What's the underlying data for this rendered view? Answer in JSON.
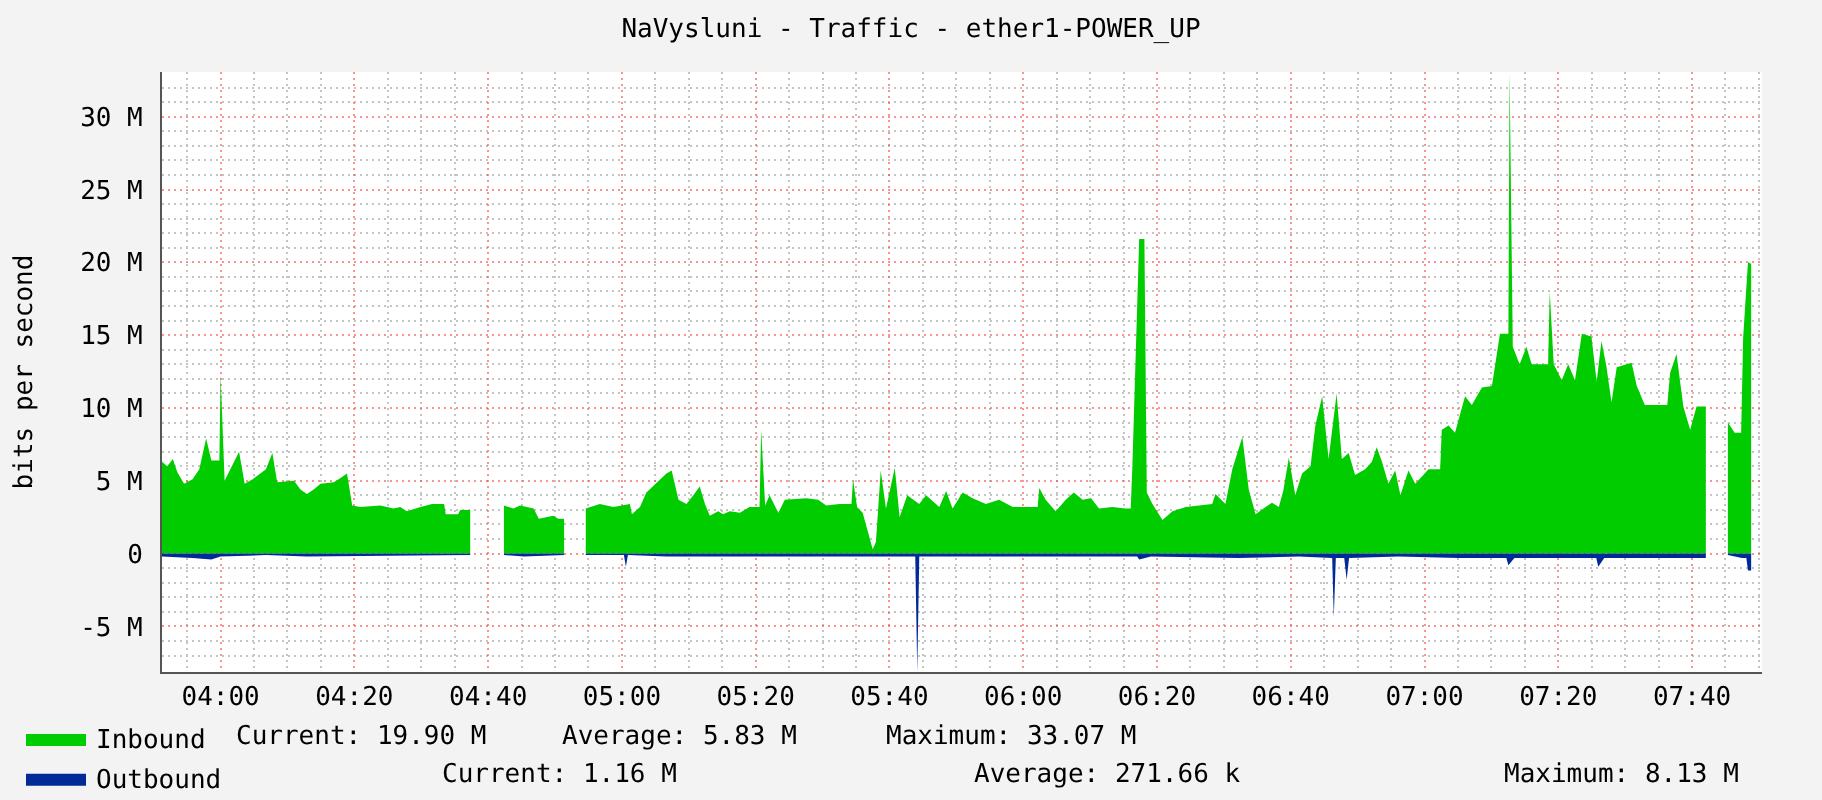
{
  "chart_data": {
    "type": "area",
    "title": "NaVysluni - Traffic - ether1-POWER_UP",
    "ylabel": "bits per second",
    "xlim": [
      3.854,
      7.841
    ],
    "ylim": [
      -8.13,
      33.07
    ],
    "xticks": [
      {
        "value": 3.9167,
        "label": null
      },
      {
        "value": 4,
        "label": "04:00"
      },
      {
        "value": 4.0833,
        "label": null
      },
      {
        "value": 4.1667,
        "label": null
      },
      {
        "value": 4.25,
        "label": null
      },
      {
        "value": 4.3333,
        "label": "04:20"
      },
      {
        "value": 4.4167,
        "label": null
      },
      {
        "value": 4.5,
        "label": null
      },
      {
        "value": 4.5833,
        "label": null
      },
      {
        "value": 4.6667,
        "label": "04:40"
      },
      {
        "value": 4.75,
        "label": null
      },
      {
        "value": 4.8333,
        "label": null
      },
      {
        "value": 4.9167,
        "label": null
      },
      {
        "value": 5,
        "label": "05:00"
      },
      {
        "value": 5.0833,
        "label": null
      },
      {
        "value": 5.1667,
        "label": null
      },
      {
        "value": 5.25,
        "label": null
      },
      {
        "value": 5.3333,
        "label": "05:20"
      },
      {
        "value": 5.4167,
        "label": null
      },
      {
        "value": 5.5,
        "label": null
      },
      {
        "value": 5.5833,
        "label": null
      },
      {
        "value": 5.6667,
        "label": "05:40"
      },
      {
        "value": 5.75,
        "label": null
      },
      {
        "value": 5.8333,
        "label": null
      },
      {
        "value": 5.9167,
        "label": null
      },
      {
        "value": 6,
        "label": "06:00"
      },
      {
        "value": 6.0833,
        "label": null
      },
      {
        "value": 6.1667,
        "label": null
      },
      {
        "value": 6.25,
        "label": null
      },
      {
        "value": 6.3333,
        "label": "06:20"
      },
      {
        "value": 6.4167,
        "label": null
      },
      {
        "value": 6.5,
        "label": null
      },
      {
        "value": 6.5833,
        "label": null
      },
      {
        "value": 6.6667,
        "label": "06:40"
      },
      {
        "value": 6.75,
        "label": null
      },
      {
        "value": 6.8333,
        "label": null
      },
      {
        "value": 6.9167,
        "label": null
      },
      {
        "value": 7,
        "label": "07:00"
      },
      {
        "value": 7.0833,
        "label": null
      },
      {
        "value": 7.1667,
        "label": null
      },
      {
        "value": 7.25,
        "label": null
      },
      {
        "value": 7.3333,
        "label": "07:20"
      },
      {
        "value": 7.4167,
        "label": null
      },
      {
        "value": 7.5,
        "label": null
      },
      {
        "value": 7.5833,
        "label": null
      },
      {
        "value": 7.6667,
        "label": "07:40"
      },
      {
        "value": 7.75,
        "label": null
      },
      {
        "value": 7.8333,
        "label": null
      }
    ],
    "yticks": [
      {
        "value": -7,
        "label": null
      },
      {
        "value": -6,
        "label": null
      },
      {
        "value": -5,
        "label": "-5 M"
      },
      {
        "value": -4,
        "label": null
      },
      {
        "value": -3,
        "label": null
      },
      {
        "value": -2,
        "label": null
      },
      {
        "value": -1,
        "label": null
      },
      0,
      {
        "value": 1,
        "label": null
      },
      {
        "value": 2,
        "label": null
      },
      {
        "value": 3,
        "label": null
      },
      {
        "value": 4,
        "label": null
      },
      {
        "value": 5,
        "label": "5 M"
      },
      {
        "value": 6,
        "label": null
      },
      {
        "value": 7,
        "label": null
      },
      {
        "value": 8,
        "label": null
      },
      {
        "value": 9,
        "label": null
      },
      {
        "value": 10,
        "label": "10 M"
      },
      {
        "value": 11,
        "label": null
      },
      {
        "value": 12,
        "label": null
      },
      {
        "value": 13,
        "label": null
      },
      {
        "value": 14,
        "label": null
      },
      {
        "value": 15,
        "label": "15 M"
      },
      {
        "value": 16,
        "label": null
      },
      {
        "value": 17,
        "label": null
      },
      {
        "value": 18,
        "label": null
      },
      {
        "value": 19,
        "label": null
      },
      {
        "value": 20,
        "label": "20 M"
      },
      {
        "value": 21,
        "label": null
      },
      {
        "value": 22,
        "label": null
      },
      {
        "value": 23,
        "label": null
      },
      {
        "value": 24,
        "label": null
      },
      {
        "value": 25,
        "label": "25 M"
      },
      {
        "value": 26,
        "label": null
      },
      {
        "value": 27,
        "label": null
      },
      {
        "value": 28,
        "label": null
      },
      {
        "value": 29,
        "label": null
      },
      {
        "value": 30,
        "label": "30 M"
      },
      {
        "value": 31,
        "label": null
      },
      {
        "value": 32,
        "label": null
      }
    ],
    "grid": true,
    "legend": "bottom left",
    "series": [
      {
        "name": "Inbound",
        "color": "#00cc00",
        "x": [
          3.854,
          3.867,
          3.881,
          3.892,
          3.909,
          3.93,
          3.947,
          3.964,
          3.977,
          3.997,
          4.0,
          4.01,
          4.046,
          4.06,
          4.08,
          4.113,
          4.129,
          4.141,
          4.183,
          4.199,
          4.215,
          4.232,
          4.249,
          4.282,
          4.299,
          4.315,
          4.328,
          4.348,
          4.398,
          4.431,
          4.448,
          4.464,
          4.498,
          4.527,
          4.557,
          4.561,
          4.592,
          4.597,
          4.622,
          4.66,
          4.706,
          4.73,
          4.746,
          4.78,
          4.793,
          4.829,
          4.841,
          4.856,
          4.88,
          4.91,
          4.945,
          4.979,
          5.02,
          5.025,
          5.045,
          5.061,
          5.111,
          5.124,
          5.141,
          5.161,
          5.178,
          5.194,
          5.207,
          5.219,
          5.24,
          5.252,
          5.269,
          5.294,
          5.318,
          5.343,
          5.347,
          5.357,
          5.368,
          5.39,
          5.406,
          5.459,
          5.489,
          5.509,
          5.542,
          5.572,
          5.576,
          5.586,
          5.6,
          5.625,
          5.633,
          5.645,
          5.658,
          5.68,
          5.692,
          5.711,
          5.741,
          5.758,
          5.791,
          5.808,
          5.824,
          5.849,
          5.874,
          5.907,
          5.94,
          5.974,
          6.036,
          6.04,
          6.056,
          6.081,
          6.106,
          6.126,
          6.148,
          6.169,
          6.189,
          6.222,
          6.255,
          6.268,
          6.272,
          6.289,
          6.302,
          6.308,
          6.322,
          6.347,
          6.372,
          6.405,
          6.438,
          6.471,
          6.479,
          6.504,
          6.521,
          6.546,
          6.562,
          6.579,
          6.604,
          6.62,
          6.637,
          6.648,
          6.662,
          6.678,
          6.695,
          6.716,
          6.728,
          6.745,
          6.761,
          6.781,
          6.794,
          6.811,
          6.827,
          6.852,
          6.869,
          6.881,
          6.894,
          6.91,
          6.927,
          6.94,
          6.96,
          6.977,
          7.01,
          7.039,
          7.043,
          7.06,
          7.076,
          7.101,
          7.118,
          7.143,
          7.168,
          7.188,
          7.209,
          7.212,
          7.22,
          7.237,
          7.254,
          7.267,
          7.308,
          7.312,
          7.322,
          7.342,
          7.358,
          7.375,
          7.392,
          7.416,
          7.429,
          7.441,
          7.453,
          7.466,
          7.479,
          7.516,
          7.529,
          7.549,
          7.605,
          7.612,
          7.628,
          7.645,
          7.662,
          7.678,
          7.701,
          7.73,
          7.756,
          7.773,
          7.789,
          7.794,
          7.806,
          7.814
        ],
        "values": [
          6.3,
          6.0,
          6.5,
          5.6,
          4.8,
          5.1,
          5.8,
          7.9,
          6.4,
          6.4,
          12.3,
          5.0,
          7.0,
          4.8,
          5.1,
          5.8,
          6.9,
          4.9,
          5.0,
          4.4,
          4.1,
          4.4,
          4.8,
          4.9,
          5.2,
          5.5,
          3.3,
          3.2,
          3.3,
          3.1,
          3.2,
          2.9,
          3.2,
          3.4,
          3.4,
          2.7,
          2.7,
          3.0,
          3.0,
          null,
          3.3,
          3.1,
          3.3,
          3.1,
          2.4,
          2.6,
          2.4,
          2.4,
          null,
          3.1,
          3.4,
          3.2,
          3.4,
          2.7,
          3.2,
          4.2,
          5.5,
          5.7,
          3.7,
          3.4,
          4.0,
          4.6,
          3.4,
          2.6,
          2.9,
          2.7,
          2.9,
          2.8,
          3.2,
          3.2,
          8.5,
          3.3,
          4.0,
          2.8,
          3.7,
          3.8,
          3.7,
          3.3,
          3.4,
          3.4,
          5.1,
          3.2,
          2.8,
          0.3,
          0.8,
          5.7,
          3.1,
          5.9,
          2.5,
          4.0,
          3.4,
          4.0,
          3.2,
          4.3,
          3.1,
          4.2,
          3.8,
          3.4,
          3.7,
          3.2,
          3.2,
          4.5,
          3.7,
          2.9,
          3.7,
          4.2,
          3.7,
          3.8,
          3.1,
          3.2,
          3.1,
          3.1,
          6.0,
          21.6,
          21.6,
          4.2,
          3.4,
          2.3,
          2.9,
          3.2,
          3.3,
          3.4,
          4.1,
          3.4,
          5.8,
          8.0,
          4.4,
          2.7,
          3.2,
          3.5,
          3.2,
          4.3,
          6.6,
          4.0,
          5.5,
          6.0,
          8.8,
          10.8,
          6.5,
          11.0,
          6.5,
          6.9,
          5.4,
          5.8,
          6.3,
          7.3,
          6.3,
          4.8,
          5.7,
          4.0,
          5.7,
          4.8,
          5.8,
          5.8,
          8.5,
          8.8,
          8.3,
          10.8,
          10.2,
          11.4,
          11.5,
          15.1,
          15.1,
          33.07,
          14.2,
          13.0,
          14.2,
          13.0,
          13.0,
          18.0,
          13.0,
          11.9,
          13.0,
          11.9,
          15.1,
          14.9,
          11.8,
          14.6,
          12.9,
          10.4,
          12.8,
          13.1,
          11.5,
          10.2,
          10.2,
          12.4,
          13.7,
          10.1,
          8.5,
          10.1,
          10.1,
          null,
          9.0,
          8.3,
          8.3,
          14.8,
          20.0,
          19.9
        ]
      },
      {
        "name": "Outbound",
        "color": "#002a97",
        "x": [
          3.854,
          3.93,
          3.977,
          4.0,
          4.113,
          4.215,
          4.622,
          4.66,
          4.706,
          4.756,
          4.856,
          4.88,
          4.91,
          5.005,
          5.01,
          5.015,
          5.111,
          5.731,
          5.736,
          5.741,
          6.284,
          6.289,
          6.318,
          6.537,
          6.687,
          6.77,
          6.774,
          6.779,
          6.8,
          6.806,
          6.812,
          6.935,
          7.085,
          7.204,
          7.209,
          7.224,
          7.428,
          7.433,
          7.448,
          7.701,
          7.73,
          7.756,
          7.791,
          7.802,
          7.806,
          7.814
        ],
        "values": [
          -0.2,
          -0.3,
          -0.4,
          -0.2,
          -0.1,
          -0.2,
          -0.1,
          null,
          -0.1,
          -0.2,
          -0.1,
          null,
          -0.1,
          -0.1,
          -0.9,
          -0.1,
          -0.2,
          -0.2,
          -8.13,
          -0.2,
          -0.2,
          -0.4,
          -0.2,
          -0.3,
          -0.2,
          -0.3,
          -4.4,
          -0.3,
          -0.3,
          -1.8,
          -0.3,
          -0.2,
          -0.3,
          -0.3,
          -0.8,
          -0.3,
          -0.3,
          -0.9,
          -0.3,
          -0.3,
          null,
          -0.1,
          -0.3,
          -0.3,
          -1.16,
          -1.16
        ]
      }
    ],
    "annotations": [
      "Current: 19.90 M",
      "Average: 5.83 M",
      "Maximum: 33.07 M",
      "Current: 1.16 M",
      "Average: 271.66 k",
      "Maximum: 8.13 M"
    ]
  }
}
